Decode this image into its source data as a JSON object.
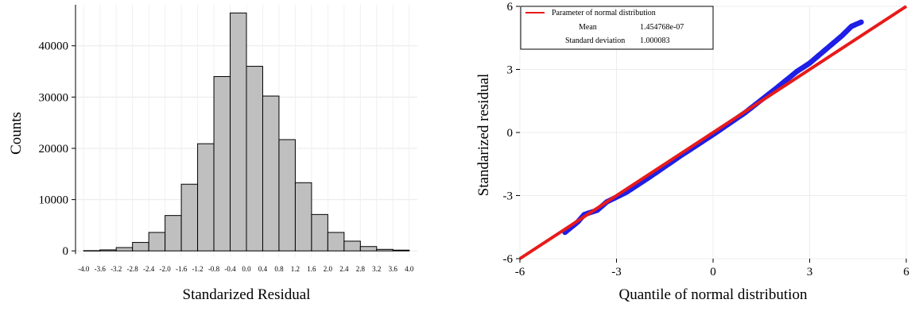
{
  "chart_data": [
    {
      "type": "bar",
      "xlabel": "Standarized Residual",
      "ylabel": "Counts",
      "xlim": [
        -4.2,
        4.2
      ],
      "ylim": [
        -1200,
        48000
      ],
      "x_ticks": [
        "-4.0",
        "-3.6",
        "-3.2",
        "-2.8",
        "-2.4",
        "-2.0",
        "-1.6",
        "-1.2",
        "-0.8",
        "-0.4",
        "0.0",
        "0.4",
        "0.8",
        "1.2",
        "1.6",
        "2.0",
        "2.4",
        "2.8",
        "3.2",
        "3.6",
        "4.0"
      ],
      "y_ticks": [
        "0",
        "10000",
        "20000",
        "30000",
        "40000"
      ],
      "bin_edges": [
        -4.0,
        -3.6,
        -3.2,
        -2.8,
        -2.4,
        -2.0,
        -1.6,
        -1.2,
        -0.8,
        -0.4,
        0.0,
        0.4,
        0.8,
        1.2,
        1.6,
        2.0,
        2.4,
        2.8,
        3.2,
        3.6,
        4.0
      ],
      "values": [
        50,
        200,
        650,
        1650,
        3600,
        6900,
        13000,
        20900,
        34000,
        46400,
        36000,
        30200,
        21700,
        13300,
        7100,
        3600,
        1900,
        850,
        300,
        150
      ],
      "bar_color": "#bfbfbf",
      "grid": true
    },
    {
      "type": "scatter",
      "xlabel": "Quantile of normal distribution",
      "ylabel": "Standarized residual",
      "xlim": [
        -6,
        6
      ],
      "ylim": [
        -6,
        6
      ],
      "x_ticks": [
        "-6",
        "-3",
        "0",
        "3",
        "6"
      ],
      "y_ticks": [
        "-6",
        "-3",
        "0",
        "3",
        "6"
      ],
      "grid": true,
      "qq_points_anchor": [
        [
          -4.6,
          -4.75
        ],
        [
          -4.2,
          -4.25
        ],
        [
          -4.0,
          -3.9
        ],
        [
          -3.6,
          -3.7
        ],
        [
          -3.3,
          -3.3
        ],
        [
          -2.7,
          -2.85
        ],
        [
          -2.0,
          -2.15
        ],
        [
          -1.0,
          -1.1
        ],
        [
          0.0,
          -0.1
        ],
        [
          1.0,
          0.95
        ],
        [
          2.0,
          2.15
        ],
        [
          2.6,
          2.9
        ],
        [
          3.0,
          3.3
        ],
        [
          3.5,
          3.95
        ],
        [
          4.0,
          4.6
        ],
        [
          4.3,
          5.05
        ],
        [
          4.6,
          5.25
        ]
      ],
      "point_color": "#1f1fe6",
      "line": {
        "x": [
          -6,
          6
        ],
        "y": [
          -6,
          6
        ],
        "color": "#e81a1a"
      },
      "legend": {
        "position": "top-left",
        "title": "Parameter of normal distribution",
        "rows": [
          {
            "label": "Mean",
            "value": "1.454768e-07"
          },
          {
            "label": "Standard deviation",
            "value": "1.000083"
          }
        ]
      }
    }
  ]
}
